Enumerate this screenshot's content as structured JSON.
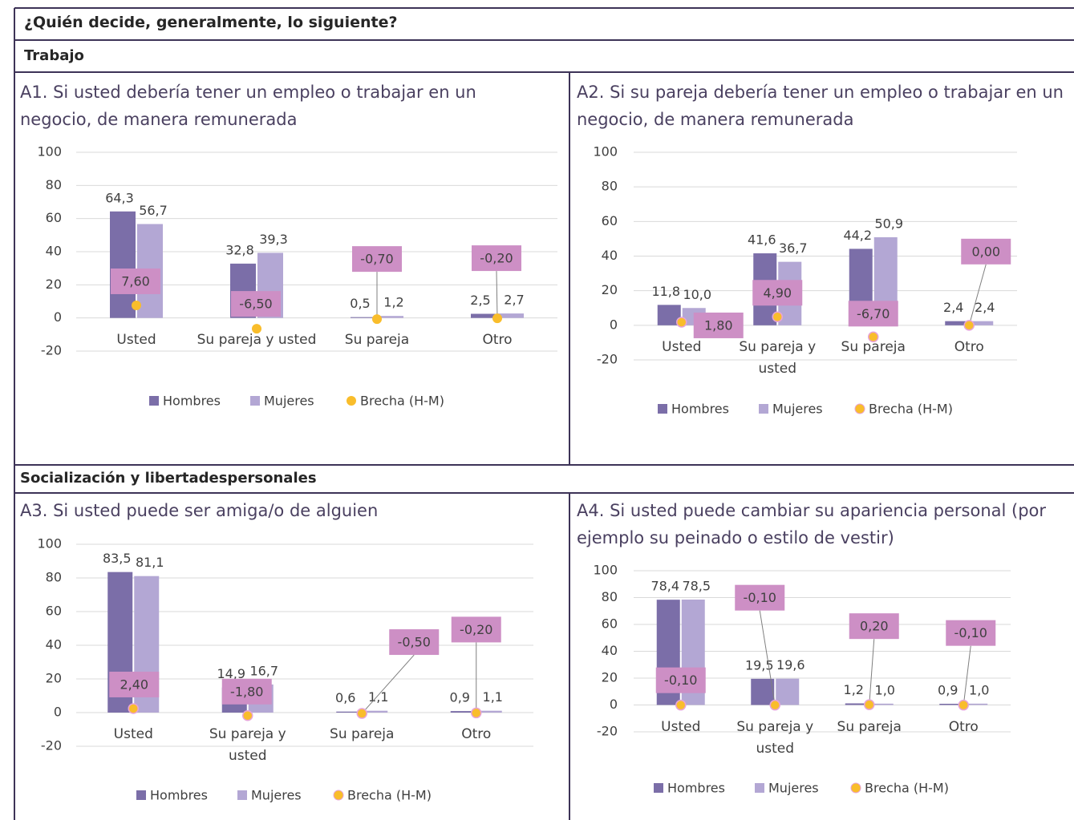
{
  "header": {
    "title": "¿Quién decide, generalmente, lo siguiente?",
    "sections": [
      "Trabajo",
      "Socialización y libertadespersonales"
    ]
  },
  "chart_data": [
    {
      "type": "bar",
      "title": "A1. Si usted debería tener un empleo o trabajar en un negocio, de manera remunerada",
      "categories": [
        "Usted",
        "Su pareja y usted",
        "Su pareja",
        "Otro"
      ],
      "series": [
        {
          "name": "Hombres",
          "color": "#7b6ea8",
          "values": [
            64.3,
            32.8,
            0.5,
            2.5
          ],
          "value_labels": [
            "64,3",
            "32,8",
            "0,5",
            "2,5"
          ]
        },
        {
          "name": "Mujeres",
          "color": "#b3a7d4",
          "values": [
            56.7,
            39.3,
            1.2,
            2.7
          ],
          "value_labels": [
            "56,7",
            "39,3",
            "1,2",
            "2,7"
          ]
        },
        {
          "name": "Brecha (H-M)",
          "type": "scatter",
          "color": "#f9bd2b",
          "values": [
            7.6,
            -6.5,
            -0.7,
            -0.2
          ],
          "value_labels": [
            "7,60",
            "-6,50",
            "-0,70",
            "-0,20"
          ]
        }
      ],
      "ylim": [
        -20,
        100
      ],
      "yticks": [
        -20,
        0,
        20,
        40,
        60,
        80,
        100
      ],
      "grid": true
    },
    {
      "type": "bar",
      "title": "A2. Si su pareja debería tener un empleo o trabajar en un negocio, de manera remunerada",
      "categories": [
        "Usted",
        "Su pareja y usted",
        "Su pareja",
        "Otro"
      ],
      "series": [
        {
          "name": "Hombres",
          "color": "#7b6ea8",
          "values": [
            11.8,
            41.6,
            44.2,
            2.4
          ],
          "value_labels": [
            "11,8",
            "41,6",
            "44,2",
            "2,4"
          ]
        },
        {
          "name": "Mujeres",
          "color": "#b3a7d4",
          "values": [
            10.0,
            36.7,
            50.9,
            2.4
          ],
          "value_labels": [
            "10,0",
            "36,7",
            "50,9",
            "2,4"
          ]
        },
        {
          "name": "Brecha (H-M)",
          "type": "scatter",
          "color": "#f9bd2b",
          "values": [
            1.8,
            4.9,
            -6.7,
            0.0
          ],
          "value_labels": [
            "1,80",
            "4,90",
            "-6,70",
            "0,00"
          ]
        }
      ],
      "ylim": [
        -20,
        100
      ],
      "yticks": [
        -20,
        0,
        20,
        40,
        60,
        80,
        100
      ],
      "grid": true
    },
    {
      "type": "bar",
      "title": "A3. Si usted puede ser amiga/o de alguien",
      "categories": [
        "Usted",
        "Su pareja y usted",
        "Su pareja",
        "Otro"
      ],
      "series": [
        {
          "name": "Hombres",
          "color": "#7b6ea8",
          "values": [
            83.5,
            14.9,
            0.6,
            0.9
          ],
          "value_labels": [
            "83,5",
            "14,9",
            "0,6",
            "0,9"
          ]
        },
        {
          "name": "Mujeres",
          "color": "#b3a7d4",
          "values": [
            81.1,
            16.7,
            1.1,
            1.1
          ],
          "value_labels": [
            "81,1",
            "16,7",
            "1,1",
            "1,1"
          ]
        },
        {
          "name": "Brecha (H-M)",
          "type": "scatter",
          "color": "#f9bd2b",
          "values": [
            2.4,
            -1.8,
            -0.5,
            -0.2
          ],
          "value_labels": [
            "2,40",
            "-1,80",
            "-0,50",
            "-0,20"
          ]
        }
      ],
      "ylim": [
        -20,
        100
      ],
      "yticks": [
        -20,
        0,
        20,
        40,
        60,
        80,
        100
      ],
      "grid": true
    },
    {
      "type": "bar",
      "title": "A4. Si usted puede cambiar su apariencia personal (por ejemplo su peinado o estilo de vestir)",
      "categories": [
        "Usted",
        "Su pareja y usted",
        "Su pareja",
        "Otro"
      ],
      "series": [
        {
          "name": "Hombres",
          "color": "#7b6ea8",
          "values": [
            78.4,
            19.5,
            1.2,
            0.9
          ],
          "value_labels": [
            "78,4",
            "19,5",
            "1,2",
            "0,9"
          ]
        },
        {
          "name": "Mujeres",
          "color": "#b3a7d4",
          "values": [
            78.5,
            19.6,
            1.0,
            1.0
          ],
          "value_labels": [
            "78,5",
            "19,6",
            "1,0",
            "1,0"
          ]
        },
        {
          "name": "Brecha (H-M)",
          "type": "scatter",
          "color": "#f9bd2b",
          "values": [
            -0.1,
            -0.1,
            0.2,
            -0.1
          ],
          "value_labels": [
            "-0,10",
            "-0,10",
            "0,20",
            "-0,10"
          ]
        }
      ],
      "ylim": [
        -20,
        100
      ],
      "yticks": [
        -20,
        0,
        20,
        40,
        60,
        80,
        100
      ],
      "grid": true
    }
  ]
}
